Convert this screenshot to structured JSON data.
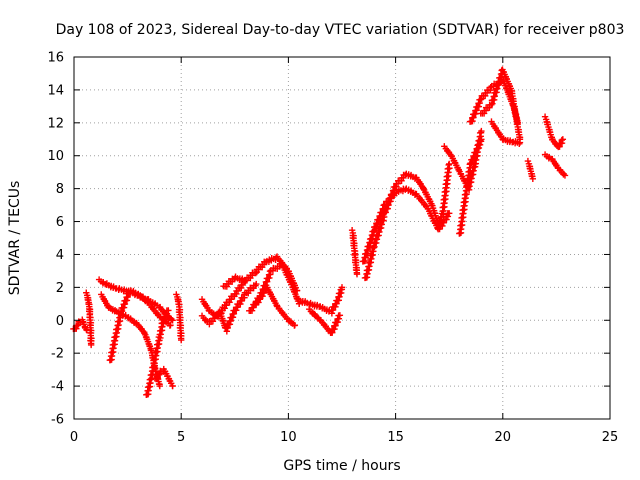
{
  "chart_data": {
    "type": "scatter",
    "title": "Day 108 of 2023, Sidereal Day-to-day VTEC variation (SDTVAR) for receiver p803",
    "xlabel": "GPS time / hours",
    "ylabel": "SDTVAR / TECUs",
    "xlim": [
      0,
      25
    ],
    "ylim": [
      -6,
      16
    ],
    "xticks": [
      0,
      5,
      10,
      15,
      20,
      25
    ],
    "xtick_labels": [
      "0",
      "5",
      "10",
      "15",
      "20",
      "25"
    ],
    "yticks": [
      -6,
      -4,
      -2,
      0,
      2,
      4,
      6,
      8,
      10,
      12,
      14,
      16
    ],
    "ytick_labels": [
      "-6",
      "-4",
      "-2",
      "0",
      "2",
      "4",
      "6",
      "8",
      "10",
      "12",
      "14",
      "16"
    ],
    "grid": true,
    "marker": "+",
    "color": "#ff0000",
    "series": [
      {
        "name": "s1",
        "x": [
          0.0,
          0.2,
          0.4,
          0.5,
          0.6
        ],
        "y": [
          -0.6,
          -0.2,
          0.0,
          -0.4,
          -0.6
        ]
      },
      {
        "name": "s2",
        "x": [
          0.6,
          0.7,
          0.75,
          0.8
        ],
        "y": [
          1.6,
          1.0,
          0.3,
          -1.5
        ]
      },
      {
        "name": "s3",
        "x": [
          1.2,
          1.5,
          2.0,
          2.5,
          3.0,
          3.5,
          4.0,
          4.3,
          4.6
        ],
        "y": [
          2.4,
          2.2,
          1.9,
          1.8,
          1.5,
          1.2,
          0.8,
          0.3,
          0.0
        ]
      },
      {
        "name": "s4",
        "x": [
          1.3,
          1.6,
          2.0,
          2.5,
          3.0,
          3.3,
          3.6,
          3.8,
          4.0
        ],
        "y": [
          1.5,
          0.8,
          0.5,
          0.2,
          -0.3,
          -0.8,
          -1.8,
          -3.0,
          -4.0
        ]
      },
      {
        "name": "s5",
        "x": [
          1.7,
          1.9,
          2.2,
          2.6,
          3.0,
          3.5,
          4.0,
          4.5
        ],
        "y": [
          -2.5,
          -1.2,
          0.5,
          1.8,
          1.6,
          1.0,
          0.2,
          -0.3
        ]
      },
      {
        "name": "s6",
        "x": [
          3.4,
          3.6,
          3.8,
          4.0,
          4.2,
          4.4
        ],
        "y": [
          -4.6,
          -3.5,
          -2.2,
          -1.0,
          0.2,
          0.6
        ]
      },
      {
        "name": "s7",
        "x": [
          3.8,
          4.0,
          4.2,
          4.4,
          4.6
        ],
        "y": [
          -3.6,
          -3.2,
          -3.0,
          -3.5,
          -4.0
        ]
      },
      {
        "name": "s8",
        "x": [
          4.8,
          4.9,
          5.0
        ],
        "y": [
          1.5,
          1.0,
          -1.2
        ]
      },
      {
        "name": "s9",
        "x": [
          6.0,
          6.3,
          6.7,
          7.0,
          7.5,
          8.0
        ],
        "y": [
          1.2,
          0.6,
          0.2,
          0.8,
          1.6,
          2.4
        ]
      },
      {
        "name": "s10",
        "x": [
          6.0,
          6.3,
          6.8,
          7.1,
          7.5,
          8.0,
          8.5
        ],
        "y": [
          0.2,
          -0.2,
          0.5,
          -0.6,
          0.6,
          1.6,
          2.2
        ]
      },
      {
        "name": "s11",
        "x": [
          7.0,
          7.5,
          8.0,
          8.5,
          9.0,
          9.5,
          10.0,
          10.4
        ],
        "y": [
          2.0,
          2.6,
          2.4,
          3.0,
          3.6,
          3.8,
          3.0,
          1.8
        ]
      },
      {
        "name": "s12",
        "x": [
          8.2,
          8.7,
          9.2,
          9.7,
          10.2,
          10.5
        ],
        "y": [
          0.5,
          1.5,
          3.0,
          3.4,
          2.0,
          1.0
        ]
      },
      {
        "name": "s13",
        "x": [
          8.5,
          9.0,
          9.5,
          10.0,
          10.3
        ],
        "y": [
          1.0,
          2.0,
          0.8,
          0.0,
          -0.3
        ]
      },
      {
        "name": "s14",
        "x": [
          10.5,
          11.0,
          11.5,
          12.0,
          12.3,
          12.5
        ],
        "y": [
          1.2,
          1.0,
          0.8,
          0.5,
          1.2,
          2.0
        ]
      },
      {
        "name": "s15",
        "x": [
          11.0,
          11.5,
          12.0,
          12.4
        ],
        "y": [
          0.6,
          0.0,
          -0.8,
          0.3
        ]
      },
      {
        "name": "s16",
        "x": [
          13.0,
          13.1,
          13.2
        ],
        "y": [
          5.4,
          4.0,
          2.8
        ]
      },
      {
        "name": "s17",
        "x": [
          13.5,
          14.0,
          14.5,
          15.0,
          15.5,
          16.0,
          16.5,
          17.0,
          17.5
        ],
        "y": [
          3.5,
          5.5,
          7.0,
          7.8,
          8.0,
          7.6,
          6.8,
          5.5,
          6.5
        ]
      },
      {
        "name": "s18",
        "x": [
          13.6,
          14.0,
          14.5,
          15.0,
          15.5,
          16.0,
          16.3
        ],
        "y": [
          2.5,
          4.5,
          6.5,
          8.2,
          8.9,
          8.6,
          8.0
        ]
      },
      {
        "name": "s19",
        "x": [
          16.3,
          16.7,
          17.0,
          17.2,
          17.5
        ],
        "y": [
          8.0,
          7.0,
          5.8,
          6.5,
          9.5
        ]
      },
      {
        "name": "s20",
        "x": [
          17.3,
          17.6,
          18.0,
          18.4,
          18.7,
          19.0
        ],
        "y": [
          10.5,
          10.0,
          9.0,
          8.0,
          9.5,
          11.5
        ]
      },
      {
        "name": "s21",
        "x": [
          18.0,
          18.2,
          18.5,
          19.0
        ],
        "y": [
          5.2,
          7.0,
          9.5,
          11.0
        ]
      },
      {
        "name": "s22",
        "x": [
          18.5,
          19.0,
          19.5,
          20.0,
          20.2,
          20.5,
          20.7
        ],
        "y": [
          12.0,
          13.5,
          14.2,
          14.6,
          14.0,
          13.0,
          12.0
        ]
      },
      {
        "name": "s23",
        "x": [
          19.0,
          19.5,
          20.0,
          20.4,
          20.8
        ],
        "y": [
          12.5,
          13.2,
          15.2,
          14.0,
          11.0
        ]
      },
      {
        "name": "s24",
        "x": [
          19.5,
          20.0,
          20.5,
          20.8
        ],
        "y": [
          12.0,
          11.0,
          10.8,
          10.8
        ]
      },
      {
        "name": "s25",
        "x": [
          21.2,
          21.4
        ],
        "y": [
          9.6,
          8.6
        ]
      },
      {
        "name": "s26",
        "x": [
          22.0,
          22.3,
          22.6,
          22.8
        ],
        "y": [
          12.3,
          11.0,
          10.5,
          11.0
        ]
      },
      {
        "name": "s27",
        "x": [
          22.0,
          22.3,
          22.6,
          22.9
        ],
        "y": [
          10.0,
          9.8,
          9.2,
          8.8
        ]
      }
    ]
  }
}
